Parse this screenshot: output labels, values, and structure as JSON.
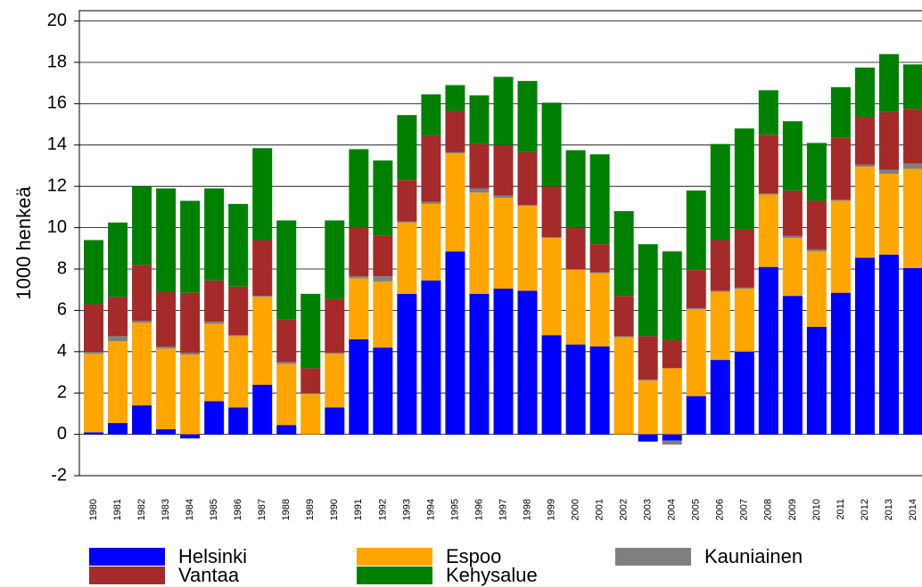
{
  "chart_data": {
    "type": "stacked_bar",
    "y_label": "1000 henkeä",
    "categories": [
      "1980",
      "1981",
      "1982",
      "1983",
      "1984",
      "1985",
      "1986",
      "1987",
      "1988",
      "1989",
      "1990",
      "1991",
      "1992",
      "1993",
      "1994",
      "1995",
      "1996",
      "1997",
      "1998",
      "1999",
      "2000",
      "2001",
      "2002",
      "2003",
      "2004",
      "2005",
      "2006",
      "2007",
      "2008",
      "2009",
      "2010",
      "2011",
      "2012",
      "2013",
      "2014"
    ],
    "series": [
      {
        "name": "Helsinki",
        "color": "#0000ff",
        "values": [
          0.1,
          0.55,
          1.4,
          0.25,
          -0.2,
          1.6,
          1.3,
          2.4,
          0.45,
          0,
          1.3,
          4.6,
          4.2,
          6.8,
          7.45,
          8.85,
          6.8,
          7.05,
          6.95,
          4.8,
          4.35,
          4.25,
          0,
          -0.35,
          -0.3,
          1.85,
          3.6,
          4.0,
          8.1,
          6.7,
          5.2,
          6.85,
          8.55,
          8.7,
          8.05
        ]
      },
      {
        "name": "Espoo",
        "color": "#ffa500",
        "values": [
          3.8,
          3.95,
          4.0,
          3.9,
          3.85,
          3.75,
          3.45,
          4.25,
          2.95,
          1.95,
          2.6,
          2.95,
          3.2,
          3.45,
          3.7,
          4.75,
          4.9,
          4.4,
          4.1,
          4.7,
          3.6,
          3.55,
          4.7,
          2.6,
          3.2,
          4.2,
          3.3,
          3.05,
          3.5,
          2.8,
          3.65,
          4.45,
          4.4,
          3.9,
          4.8
        ]
      },
      {
        "name": "Kauniainen",
        "color": "#808080",
        "values": [
          0.1,
          0.25,
          0.1,
          0.1,
          0.1,
          0.1,
          0.05,
          0.05,
          0.1,
          0.05,
          0.05,
          0.1,
          0.25,
          0.05,
          0.1,
          0.05,
          0.2,
          0.1,
          0.05,
          0.05,
          0.05,
          0.05,
          0.05,
          0.05,
          -0.2,
          0.05,
          0.05,
          0.05,
          0.05,
          0.1,
          0.1,
          0.05,
          0.1,
          0.2,
          0.25
        ]
      },
      {
        "name": "Vantaa",
        "color": "#a52a2a",
        "values": [
          2.3,
          1.9,
          2.7,
          2.65,
          2.9,
          2.0,
          2.35,
          2.7,
          2.05,
          1.2,
          2.6,
          2.35,
          1.95,
          2.0,
          3.2,
          2.0,
          2.15,
          2.45,
          2.55,
          2.45,
          2.0,
          1.35,
          1.95,
          2.1,
          1.35,
          1.85,
          2.45,
          2.8,
          2.85,
          2.2,
          2.35,
          3.0,
          2.3,
          2.8,
          2.65
        ]
      },
      {
        "name": "Kehysalue",
        "color": "#008000",
        "values": [
          3.1,
          3.6,
          3.8,
          5.0,
          4.45,
          4.45,
          4.0,
          4.45,
          4.8,
          3.6,
          3.8,
          3.8,
          3.65,
          3.15,
          2.0,
          1.25,
          2.35,
          3.3,
          3.45,
          4.05,
          3.75,
          4.35,
          4.1,
          4.45,
          4.3,
          3.85,
          4.65,
          4.9,
          2.15,
          3.35,
          2.8,
          2.45,
          2.4,
          2.8,
          2.15
        ]
      }
    ],
    "ylim": [
      -2,
      20.5
    ],
    "yticks": [
      -2,
      0,
      2,
      4,
      6,
      8,
      10,
      12,
      14,
      16,
      18,
      20
    ],
    "grid": true
  }
}
